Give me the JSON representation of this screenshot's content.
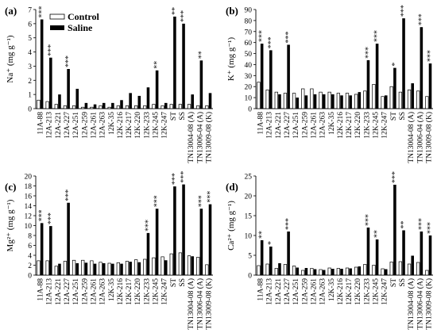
{
  "figure": {
    "legend": {
      "control": "Control",
      "saline": "Saline"
    }
  },
  "colors": {
    "control": "#ffffff",
    "saline": "#000000",
    "axis": "#000000"
  },
  "chart_data": [
    {
      "panel": "(a)",
      "type": "bar",
      "ylabel": "Na⁺ (mg g⁻¹)",
      "ylim": [
        0,
        7
      ],
      "yticks": [
        0,
        1,
        2,
        3,
        4,
        5,
        6,
        7
      ],
      "legend": "top-left",
      "categories": [
        "11A-88",
        "12A-213",
        "12A-221",
        "12A-227",
        "12A-251",
        "12A-259",
        "12A-261",
        "12A-263",
        "12K-35",
        "12K-216",
        "12K-217",
        "12K-220",
        "12K-233",
        "12K-245",
        "12K-247",
        "ST",
        "SS",
        "TN13004-08 (A)",
        "TN13006-04 (A)",
        "TN13009-08 (K)"
      ],
      "series": [
        {
          "name": "Control",
          "values": [
            0.6,
            0.5,
            0.3,
            0.2,
            0.2,
            0.1,
            0.1,
            0.2,
            0.1,
            0.2,
            0.2,
            0.2,
            0.2,
            0.3,
            0.2,
            0.3,
            0.3,
            0.3,
            0.2,
            0.2
          ]
        },
        {
          "name": "Saline",
          "values": [
            6.3,
            3.6,
            1.0,
            2.8,
            1.4,
            0.4,
            0.3,
            0.4,
            0.4,
            0.6,
            1.1,
            0.9,
            1.5,
            2.7,
            0.4,
            6.5,
            6.0,
            1.0,
            3.4,
            1.1
          ]
        }
      ],
      "annotations": [
        "***",
        "***",
        "",
        "***",
        "",
        "",
        "",
        "",
        "",
        "",
        "",
        "",
        "",
        "**",
        "",
        "**",
        "***",
        "",
        "**",
        ""
      ]
    },
    {
      "panel": "(b)",
      "type": "bar",
      "ylabel": "K⁺ (mg g⁻¹)",
      "ylim": [
        0,
        90
      ],
      "yticks": [
        0,
        10,
        20,
        30,
        40,
        50,
        60,
        70,
        80,
        90
      ],
      "categories": [
        "11A-88",
        "12A-213",
        "12A-221",
        "12A-227",
        "12A-251",
        "12A-259",
        "12A-261",
        "12A-263",
        "12K-35",
        "12K-216",
        "12K-217",
        "12K-220",
        "12K-233",
        "12K-245",
        "12K-247",
        "ST",
        "SS",
        "TN13004-08 (A)",
        "TN13006-04 (A)",
        "TN13009-08 (K)"
      ],
      "series": [
        {
          "name": "Control",
          "values": [
            24,
            17,
            15,
            14,
            14,
            18,
            18,
            15,
            15,
            14,
            14,
            13,
            16,
            22,
            11,
            20,
            15,
            17,
            16,
            11
          ]
        },
        {
          "name": "Saline",
          "values": [
            59,
            53,
            13,
            58,
            10,
            12,
            13,
            13,
            13,
            12,
            12,
            15,
            44,
            59,
            12,
            37,
            82,
            23,
            74,
            41
          ]
        }
      ],
      "annotations": [
        "***",
        "***",
        "",
        "***",
        "",
        "",
        "",
        "",
        "",
        "",
        "",
        "",
        "***",
        "***",
        "",
        "*",
        "***",
        "",
        "***",
        "***"
      ]
    },
    {
      "panel": "(c)",
      "type": "bar",
      "ylabel": "Mg²⁺ (mg g⁻¹)",
      "ylim": [
        0,
        20
      ],
      "yticks": [
        0,
        2,
        4,
        6,
        8,
        10,
        12,
        14,
        16,
        18,
        20
      ],
      "categories": [
        "11A-88",
        "12A-213",
        "12A-221",
        "12A-227",
        "12A-251",
        "12A-259",
        "12A-261",
        "12A-263",
        "12K-35",
        "12K-216",
        "12K-217",
        "12K-220",
        "12K-233",
        "12K-245",
        "12K-247",
        "ST",
        "SS",
        "TN13004-08 (A)",
        "TN13006-04 (A)",
        "TN13009-08 (K)"
      ],
      "series": [
        {
          "name": "Control",
          "values": [
            2.9,
            2.9,
            1.8,
            2.8,
            3.0,
            3.0,
            2.9,
            2.6,
            2.4,
            2.5,
            2.8,
            3.1,
            3.2,
            3.5,
            3.7,
            4.3,
            4.5,
            3.9,
            3.6,
            2.1
          ]
        },
        {
          "name": "Saline",
          "values": [
            10.5,
            9.9,
            2.3,
            14.6,
            2.4,
            2.5,
            2.3,
            2.4,
            2.3,
            2.3,
            2.7,
            2.6,
            8.5,
            13.4,
            3.0,
            17.9,
            18.3,
            3.8,
            13.4,
            14.3
          ]
        }
      ],
      "annotations": [
        "***",
        "***",
        "",
        "***",
        "",
        "",
        "",
        "",
        "",
        "",
        "",
        "",
        "***",
        "***",
        "",
        "***",
        "***",
        "",
        "***",
        "***"
      ]
    },
    {
      "panel": "(d)",
      "type": "bar",
      "ylabel": "Ca²⁺ (mg g⁻¹)",
      "ylim": [
        0,
        25
      ],
      "yticks": [
        0,
        5,
        10,
        15,
        20,
        25
      ],
      "categories": [
        "11A-88",
        "12A-213",
        "12A-221",
        "12A-227",
        "12A-251",
        "12A-259",
        "12A-261",
        "12A-263",
        "12K-35",
        "12K-216",
        "12K-217",
        "12K-220",
        "12K-233",
        "12K-245",
        "12K-247",
        "ST",
        "SS",
        "TN13004-08 (A)",
        "TN13006-04 (A)",
        "TN13009-08 (K)"
      ],
      "series": [
        {
          "name": "Control",
          "values": [
            2.4,
            2.8,
            1.7,
            2.7,
            2.3,
            1.2,
            1.7,
            1.4,
            1.8,
            1.7,
            1.8,
            2.0,
            2.7,
            2.5,
            1.6,
            3.3,
            3.4,
            2.8,
            3.2,
            1.2
          ]
        },
        {
          "name": "Saline",
          "values": [
            8.8,
            7.2,
            3.0,
            11.0,
            1.9,
            1.8,
            1.5,
            1.3,
            1.6,
            1.6,
            1.7,
            2.2,
            12.0,
            9.0,
            1.5,
            22.8,
            11.3,
            4.9,
            11.0,
            10.0
          ]
        }
      ],
      "annotations": [
        "**",
        "*",
        "",
        "***",
        "",
        "",
        "",
        "",
        "",
        "",
        "",
        "",
        "***",
        "**",
        "",
        "***",
        "**",
        "",
        "***",
        "***"
      ]
    }
  ]
}
